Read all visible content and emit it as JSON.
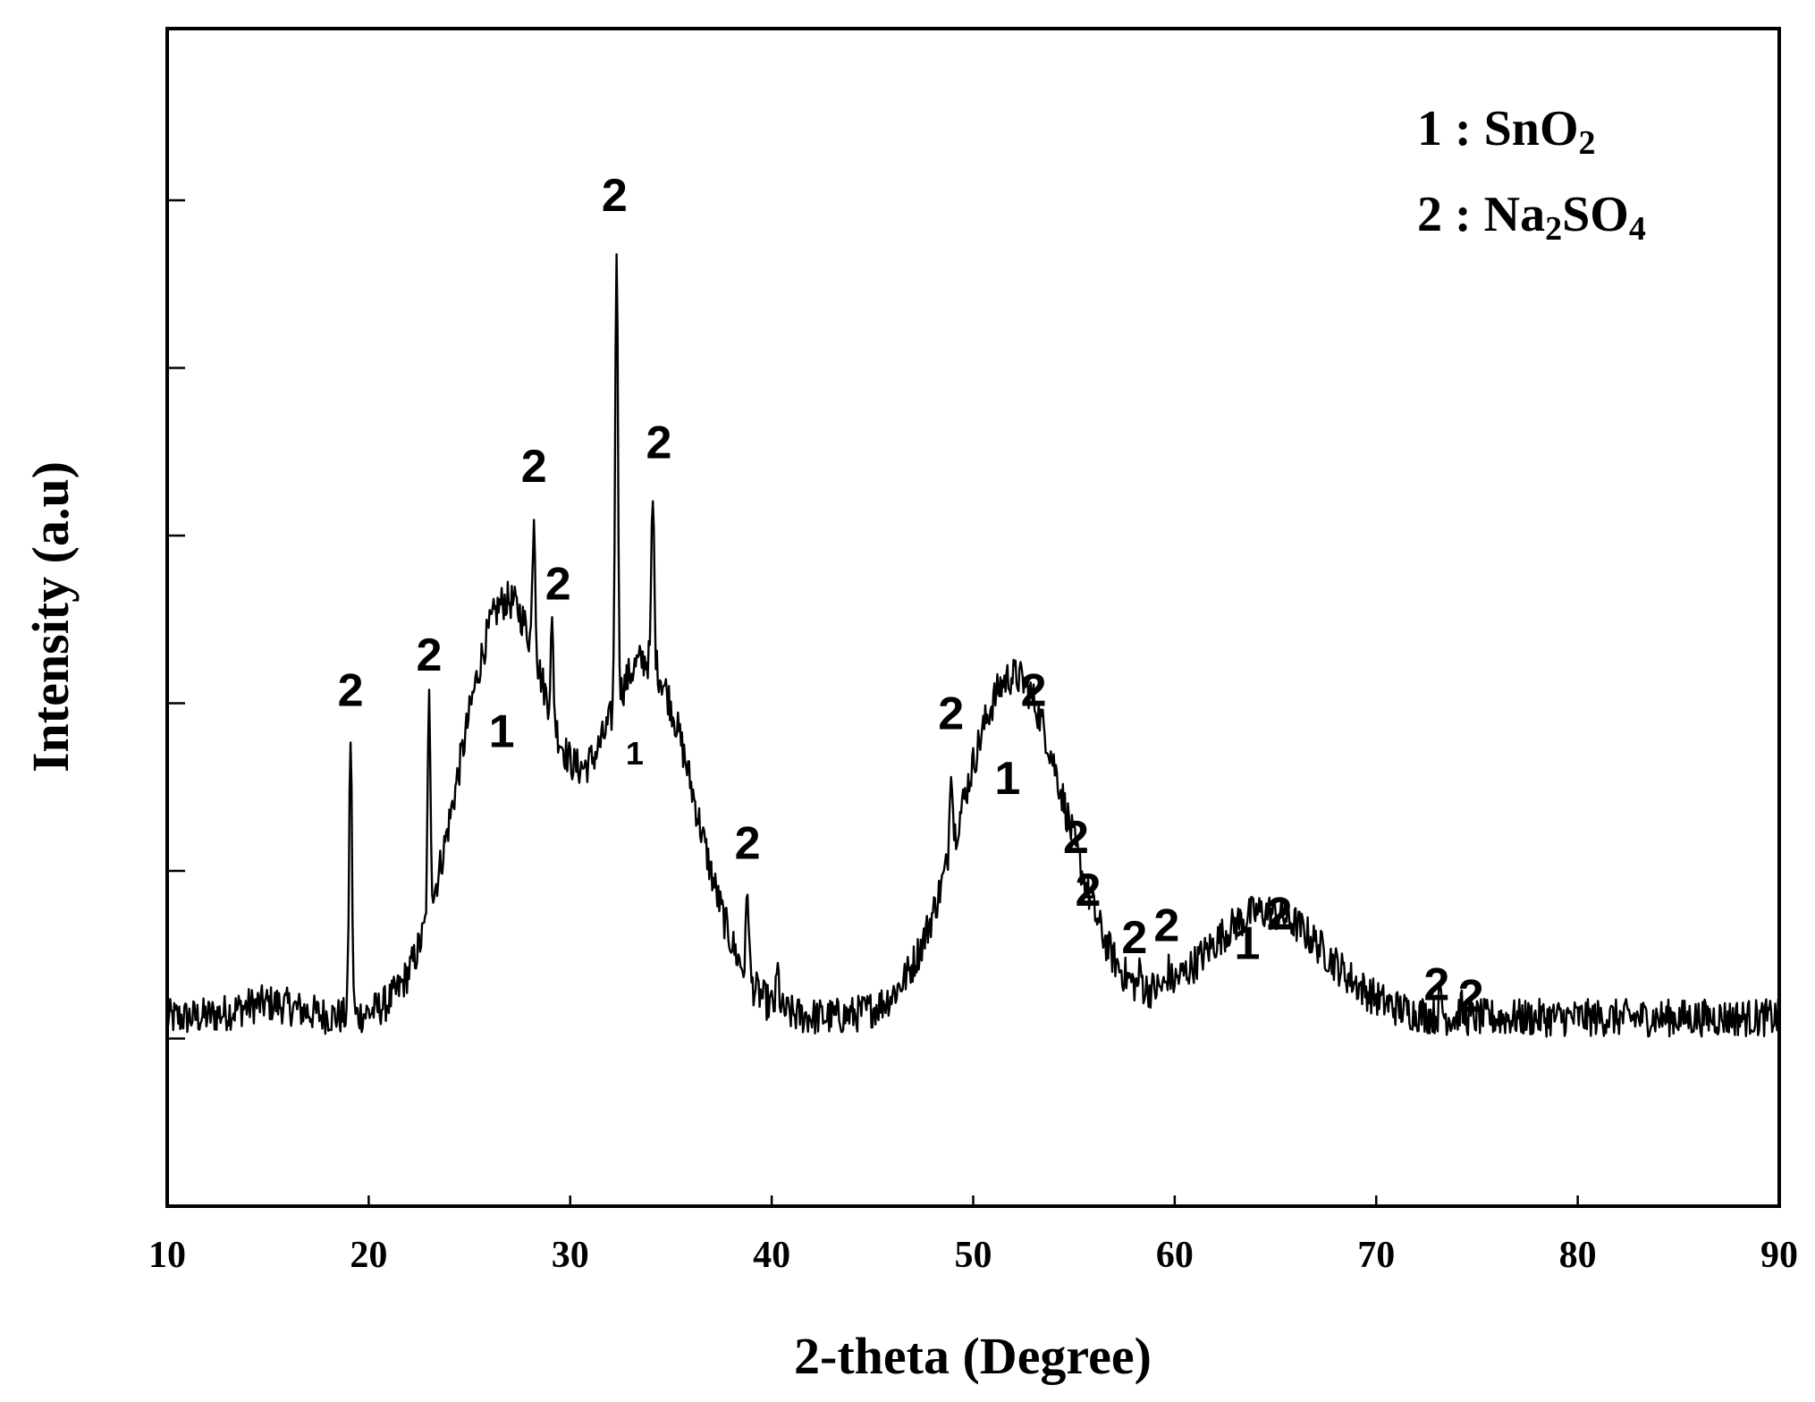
{
  "chart_data": {
    "type": "line",
    "title": "",
    "xlabel": "2-theta (Degree)",
    "ylabel": "Intensity (a.u)",
    "xlim": [
      10,
      90
    ],
    "xticks": [
      10,
      20,
      30,
      40,
      50,
      60,
      70,
      80,
      90
    ],
    "ylim": [
      0,
      100
    ],
    "yticks_labeled": false,
    "grid": false,
    "legend": {
      "placement": "top-right",
      "entries": [
        {
          "key": "1",
          "sep": " : ",
          "label_main": "SnO",
          "label_sub": "2"
        },
        {
          "key": "2",
          "sep": " : ",
          "label_main": "Na",
          "label_sub1": "2",
          "label_mid": "SO",
          "label_sub2": "4"
        }
      ]
    },
    "baseline": 16,
    "noise_amplitude": 1.6,
    "broad_humps": [
      {
        "center": 26.8,
        "width": 2.3,
        "height": 35
      },
      {
        "center": 33.8,
        "width": 2.4,
        "height": 30
      },
      {
        "center": 52.0,
        "width": 2.6,
        "height": 29
      },
      {
        "center": 64.5,
        "width": 3.0,
        "height": 9
      },
      {
        "center": 15.0,
        "width": 1.5,
        "height": 1.2
      }
    ],
    "sharp_peaks": [
      {
        "x": 19.1,
        "y": 40
      },
      {
        "x": 23.0,
        "y": 43
      },
      {
        "x": 28.2,
        "y": 59
      },
      {
        "x": 29.1,
        "y": 49
      },
      {
        "x": 32.3,
        "y": 82
      },
      {
        "x": 32.8,
        "y": 42
      },
      {
        "x": 34.1,
        "y": 60
      },
      {
        "x": 38.8,
        "y": 27
      },
      {
        "x": 40.3,
        "y": 20
      },
      {
        "x": 46.8,
        "y": 19
      },
      {
        "x": 48.9,
        "y": 38
      },
      {
        "x": 52.8,
        "y": 40
      },
      {
        "x": 54.8,
        "y": 30
      },
      {
        "x": 55.4,
        "y": 27
      },
      {
        "x": 58.3,
        "y": 20
      },
      {
        "x": 59.7,
        "y": 20
      },
      {
        "x": 62.2,
        "y": 19
      },
      {
        "x": 65.3,
        "y": 21
      },
      {
        "x": 73.2,
        "y": 18
      },
      {
        "x": 74.2,
        "y": 17
      }
    ],
    "annotations": [
      {
        "text": "2",
        "x": 19.1,
        "y": 42.5
      },
      {
        "text": "2",
        "x": 23.0,
        "y": 45.5
      },
      {
        "text": "1",
        "x": 26.6,
        "y": 39.0
      },
      {
        "text": "2",
        "x": 28.2,
        "y": 61.5
      },
      {
        "text": "2",
        "x": 29.4,
        "y": 51.5
      },
      {
        "text": "2",
        "x": 32.2,
        "y": 84.5
      },
      {
        "text": "1",
        "x": 33.2,
        "y": 37.5,
        "small": true
      },
      {
        "text": "2",
        "x": 34.4,
        "y": 63.5
      },
      {
        "text": "2",
        "x": 38.8,
        "y": 29.5
      },
      {
        "text": "2",
        "x": 48.9,
        "y": 40.5
      },
      {
        "text": "1",
        "x": 51.7,
        "y": 35.0
      },
      {
        "text": "2",
        "x": 53.0,
        "y": 42.5
      },
      {
        "text": "2",
        "x": 55.1,
        "y": 30.0
      },
      {
        "text": "2",
        "x": 55.7,
        "y": 25.5
      },
      {
        "text": "2",
        "x": 58.0,
        "y": 21.5
      },
      {
        "text": "2",
        "x": 59.6,
        "y": 22.5
      },
      {
        "text": "1",
        "x": 63.6,
        "y": 21.0
      },
      {
        "text": "2",
        "x": 65.2,
        "y": 23.5
      },
      {
        "text": "2",
        "x": 73.0,
        "y": 17.5
      },
      {
        "text": "2",
        "x": 74.7,
        "y": 16.5
      }
    ]
  }
}
